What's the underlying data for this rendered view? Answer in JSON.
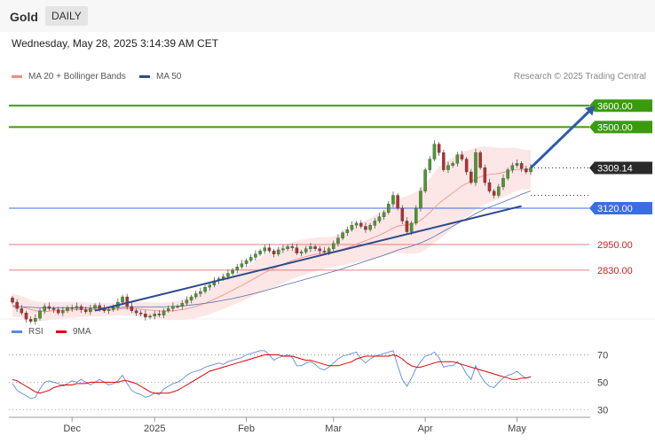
{
  "header": {
    "instrument": "Gold",
    "period": "DAILY"
  },
  "timestamp": "Wednesday, May 28, 2025 3:14:39 AM CET",
  "legend": {
    "bollinger": {
      "label": "MA 20 + Bollinger Bands",
      "color": "#f28b82"
    },
    "ma50": {
      "label": "MA 50",
      "color": "#2f4b8a"
    },
    "rsi": {
      "label": "RSI",
      "color": "#5b8ae0"
    },
    "rsi_ma": {
      "label": "9MA",
      "color": "#e00000"
    }
  },
  "credit": "Research © 2025 Trading Central",
  "chart_data": [
    {
      "type": "candlestick",
      "x_tick_labels": [
        "Dec",
        "2025",
        "Feb",
        "Mar",
        "Apr",
        "May"
      ],
      "ylim": [
        2560,
        3680
      ],
      "last_price": "3309.14",
      "levels": [
        {
          "label": "3600.00",
          "value": 3600,
          "role": "resistance",
          "color": "#3c9a0f"
        },
        {
          "label": "3500.00",
          "value": 3500,
          "role": "resistance",
          "color": "#3c9a0f"
        },
        {
          "label": "3120.00",
          "value": 3120,
          "role": "pivot",
          "color": "#3a6fe0"
        },
        {
          "label": "2950.00",
          "value": 2950,
          "role": "support",
          "color": "#e08080"
        },
        {
          "label": "2830.00",
          "value": 2830,
          "role": "support",
          "color": "#e08080"
        }
      ],
      "candle_close": [
        2680,
        2650,
        2630,
        2600,
        2590,
        2605,
        2640,
        2660,
        2650,
        2645,
        2630,
        2640,
        2655,
        2650,
        2660,
        2645,
        2635,
        2650,
        2665,
        2650,
        2640,
        2645,
        2655,
        2680,
        2705,
        2660,
        2640,
        2630,
        2625,
        2610,
        2615,
        2625,
        2620,
        2640,
        2650,
        2660,
        2660,
        2675,
        2690,
        2705,
        2720,
        2730,
        2750,
        2760,
        2780,
        2790,
        2800,
        2815,
        2830,
        2845,
        2860,
        2875,
        2890,
        2905,
        2920,
        2935,
        2920,
        2905,
        2925,
        2930,
        2940,
        2935,
        2910,
        2915,
        2930,
        2940,
        2930,
        2920,
        2915,
        2930,
        2955,
        2980,
        3005,
        3020,
        3040,
        3050,
        3035,
        3020,
        3040,
        3060,
        3080,
        3100,
        3140,
        3180,
        3120,
        3060,
        3010,
        3050,
        3120,
        3200,
        3300,
        3350,
        3420,
        3380,
        3300,
        3320,
        3330,
        3370,
        3350,
        3290,
        3240,
        3380,
        3310,
        3240,
        3200,
        3180,
        3220,
        3260,
        3300,
        3320,
        3330,
        3305,
        3290,
        3309
      ],
      "candle_open": [
        2700,
        2680,
        2650,
        2630,
        2600,
        2590,
        2605,
        2640,
        2660,
        2650,
        2645,
        2630,
        2640,
        2655,
        2650,
        2660,
        2645,
        2635,
        2650,
        2665,
        2650,
        2640,
        2645,
        2655,
        2680,
        2705,
        2660,
        2640,
        2630,
        2625,
        2610,
        2615,
        2625,
        2620,
        2640,
        2650,
        2660,
        2660,
        2675,
        2690,
        2705,
        2720,
        2730,
        2750,
        2760,
        2780,
        2790,
        2800,
        2815,
        2830,
        2845,
        2860,
        2875,
        2890,
        2905,
        2920,
        2935,
        2920,
        2905,
        2925,
        2930,
        2940,
        2935,
        2910,
        2915,
        2930,
        2940,
        2930,
        2920,
        2915,
        2930,
        2955,
        2980,
        3005,
        3020,
        3040,
        3050,
        3035,
        3020,
        3040,
        3060,
        3080,
        3100,
        3140,
        3180,
        3120,
        3060,
        3010,
        3050,
        3120,
        3200,
        3300,
        3350,
        3420,
        3380,
        3300,
        3320,
        3330,
        3370,
        3350,
        3290,
        3240,
        3380,
        3310,
        3240,
        3200,
        3180,
        3220,
        3260,
        3300,
        3320,
        3330,
        3305,
        3290
      ],
      "ma20": [
        2665,
        2662,
        2658,
        2652,
        2646,
        2640,
        2637,
        2636,
        2638,
        2640,
        2641,
        2642,
        2643,
        2644,
        2645,
        2646,
        2646,
        2645,
        2645,
        2646,
        2646,
        2646,
        2647,
        2648,
        2650,
        2651,
        2650,
        2649,
        2647,
        2645,
        2643,
        2641,
        2639,
        2638,
        2638,
        2640,
        2642,
        2645,
        2649,
        2654,
        2660,
        2667,
        2675,
        2684,
        2694,
        2704,
        2714,
        2725,
        2736,
        2747,
        2758,
        2770,
        2782,
        2794,
        2806,
        2818,
        2828,
        2838,
        2848,
        2858,
        2867,
        2875,
        2882,
        2888,
        2894,
        2899,
        2903,
        2907,
        2910,
        2913,
        2917,
        2922,
        2928,
        2935,
        2943,
        2952,
        2960,
        2968,
        2976,
        2985,
        2994,
        3004,
        3015,
        3027,
        3036,
        3040,
        3042,
        3046,
        3053,
        3064,
        3080,
        3100,
        3122,
        3143,
        3160,
        3176,
        3192,
        3208,
        3224,
        3236,
        3244,
        3258,
        3267,
        3274,
        3278,
        3280,
        3283,
        3287,
        3292,
        3298,
        3302,
        3302,
        3300,
        3302
      ],
      "bb_width": [
        55,
        52,
        50,
        48,
        46,
        45,
        44,
        43,
        42,
        41,
        40,
        39,
        38,
        37,
        36,
        35,
        34,
        33,
        32,
        32,
        31,
        31,
        30,
        30,
        31,
        32,
        33,
        34,
        35,
        36,
        37,
        38,
        39,
        40,
        42,
        44,
        46,
        48,
        50,
        52,
        54,
        56,
        58,
        60,
        62,
        64,
        66,
        68,
        70,
        72,
        74,
        76,
        78,
        80,
        82,
        84,
        86,
        88,
        88,
        88,
        87,
        86,
        85,
        84,
        82,
        80,
        78,
        76,
        74,
        72,
        72,
        73,
        75,
        78,
        82,
        86,
        90,
        94,
        98,
        102,
        106,
        110,
        115,
        120,
        125,
        130,
        135,
        140,
        145,
        150,
        155,
        160,
        165,
        170,
        170,
        168,
        166,
        162,
        158,
        154,
        150,
        145,
        140,
        135,
        130,
        125,
        120,
        115,
        110,
        105,
        100,
        95,
        92,
        90
      ],
      "ma50": [
        2660,
        2659,
        2658,
        2657,
        2656,
        2655,
        2654,
        2654,
        2654,
        2654,
        2654,
        2654,
        2654,
        2654,
        2654,
        2654,
        2654,
        2654,
        2654,
        2654,
        2654,
        2654,
        2655,
        2655,
        2656,
        2656,
        2657,
        2657,
        2657,
        2657,
        2657,
        2657,
        2657,
        2658,
        2659,
        2660,
        2661,
        2663,
        2665,
        2667,
        2669,
        2672,
        2675,
        2678,
        2681,
        2685,
        2689,
        2693,
        2697,
        2702,
        2707,
        2712,
        2717,
        2722,
        2728,
        2734,
        2740,
        2746,
        2752,
        2758,
        2764,
        2770,
        2776,
        2782,
        2788,
        2794,
        2800,
        2806,
        2812,
        2818,
        2824,
        2830,
        2837,
        2844,
        2851,
        2858,
        2865,
        2872,
        2879,
        2886,
        2893,
        2900,
        2908,
        2916,
        2924,
        2930,
        2936,
        2942,
        2950,
        2958,
        2967,
        2977,
        2988,
        3000,
        3012,
        3024,
        3036,
        3048,
        3060,
        3071,
        3082,
        3095,
        3106,
        3116,
        3125,
        3133,
        3141,
        3149,
        3158,
        3167,
        3176,
        3185,
        3193,
        3201
      ],
      "trend_line": {
        "from": [
          18,
          2640
        ],
        "to": [
          111,
          3130
        ]
      },
      "projection_arrow": {
        "from": [
          113,
          3309
        ],
        "to": [
          127,
          3600
        ]
      }
    },
    {
      "type": "line",
      "title": "RSI",
      "y_tick_labels": [
        "70",
        "50",
        "30"
      ],
      "ylim": [
        25,
        80
      ],
      "rsi": [
        49,
        44,
        42,
        40,
        38,
        39,
        45,
        50,
        51,
        50,
        49,
        47,
        49,
        51,
        50,
        52,
        50,
        48,
        50,
        52,
        50,
        48,
        49,
        51,
        55,
        49,
        44,
        42,
        41,
        39,
        40,
        42,
        41,
        45,
        47,
        49,
        50,
        52,
        55,
        57,
        58,
        59,
        61,
        62,
        63,
        64,
        63,
        65,
        66,
        67,
        68,
        70,
        71,
        72,
        73,
        73,
        70,
        66,
        68,
        69,
        70,
        68,
        62,
        62,
        64,
        65,
        63,
        60,
        59,
        61,
        64,
        67,
        69,
        70,
        71,
        72,
        67,
        64,
        67,
        69,
        70,
        71,
        72,
        73,
        62,
        52,
        47,
        53,
        60,
        65,
        69,
        70,
        72,
        68,
        61,
        62,
        62,
        65,
        62,
        56,
        52,
        62,
        55,
        50,
        47,
        46,
        50,
        53,
        55,
        56,
        58,
        55,
        53,
        54
      ],
      "rsi_ma": [
        52,
        51,
        49,
        47,
        45,
        43,
        42,
        43,
        44,
        46,
        47,
        48,
        48,
        48,
        49,
        49,
        49,
        50,
        50,
        50,
        50,
        50,
        50,
        50,
        51,
        51,
        50,
        49,
        47,
        45,
        43,
        42,
        42,
        42,
        42,
        43,
        44,
        46,
        48,
        50,
        52,
        54,
        56,
        58,
        59,
        60,
        61,
        62,
        63,
        64,
        65,
        66,
        67,
        68,
        69,
        70,
        70,
        70,
        70,
        69,
        69,
        69,
        68,
        67,
        66,
        66,
        65,
        64,
        63,
        62,
        62,
        62,
        63,
        64,
        65,
        67,
        68,
        69,
        69,
        69,
        69,
        69,
        69,
        70,
        69,
        67,
        64,
        62,
        61,
        61,
        62,
        63,
        64,
        65,
        65,
        65,
        65,
        64,
        63,
        62,
        61,
        60,
        59,
        58,
        57,
        56,
        55,
        54,
        53,
        52,
        52,
        53,
        53,
        54
      ]
    }
  ]
}
